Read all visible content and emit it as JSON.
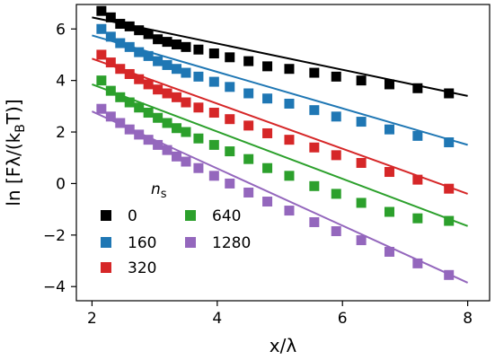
{
  "chart_data": {
    "type": "scatter",
    "xlabel": "x/λ",
    "ylabel": "ln [Fλ/(k_B T)]",
    "xlim": [
      1.75,
      8.35
    ],
    "ylim": [
      -4.55,
      6.95
    ],
    "xticks": [
      "2",
      "4",
      "6",
      "8"
    ],
    "xtick_values": [
      2,
      4,
      6,
      8
    ],
    "yticks": [
      "6",
      "4",
      "2",
      "0",
      "−2",
      "−4"
    ],
    "ytick_values": [
      6,
      4,
      2,
      0,
      -2,
      -4
    ],
    "grid": false,
    "legend_title": "n_s",
    "legend_placement": "lower-left",
    "series": [
      {
        "name": "0",
        "color": "#000000",
        "x": [
          2.15,
          2.3,
          2.45,
          2.6,
          2.75,
          2.9,
          3.05,
          3.2,
          3.35,
          3.5,
          3.7,
          3.95,
          4.2,
          4.5,
          4.8,
          5.15,
          5.55,
          5.9,
          6.3,
          6.75,
          7.2,
          7.7
        ],
        "y": [
          6.7,
          6.45,
          6.2,
          6.1,
          5.95,
          5.8,
          5.6,
          5.5,
          5.4,
          5.3,
          5.2,
          5.05,
          4.9,
          4.75,
          4.55,
          4.45,
          4.3,
          4.15,
          4.0,
          3.85,
          3.7,
          3.5
        ],
        "fit": {
          "x": [
            2.0,
            8.0
          ],
          "y": [
            6.45,
            3.4
          ]
        }
      },
      {
        "name": "160",
        "color": "#1f77b4",
        "x": [
          2.15,
          2.3,
          2.45,
          2.6,
          2.75,
          2.9,
          3.05,
          3.2,
          3.35,
          3.5,
          3.7,
          3.95,
          4.2,
          4.5,
          4.8,
          5.15,
          5.55,
          5.9,
          6.3,
          6.75,
          7.2,
          7.7
        ],
        "y": [
          6.0,
          5.7,
          5.45,
          5.3,
          5.1,
          4.95,
          4.75,
          4.6,
          4.45,
          4.3,
          4.15,
          3.95,
          3.75,
          3.5,
          3.3,
          3.1,
          2.85,
          2.6,
          2.4,
          2.1,
          1.85,
          1.6
        ],
        "fit": {
          "x": [
            2.0,
            8.0
          ],
          "y": [
            5.75,
            1.5
          ]
        }
      },
      {
        "name": "320",
        "color": "#d62728",
        "x": [
          2.15,
          2.3,
          2.45,
          2.6,
          2.75,
          2.9,
          3.05,
          3.2,
          3.35,
          3.5,
          3.7,
          3.95,
          4.2,
          4.5,
          4.8,
          5.15,
          5.55,
          5.9,
          6.3,
          6.75,
          7.2,
          7.7
        ],
        "y": [
          5.0,
          4.7,
          4.45,
          4.25,
          4.05,
          3.85,
          3.65,
          3.5,
          3.35,
          3.15,
          2.95,
          2.75,
          2.5,
          2.25,
          1.95,
          1.7,
          1.4,
          1.1,
          0.8,
          0.45,
          0.15,
          -0.2
        ],
        "fit": {
          "x": [
            2.0,
            8.0
          ],
          "y": [
            4.85,
            -0.4
          ]
        }
      },
      {
        "name": "640",
        "color": "#2ca02c",
        "x": [
          2.15,
          2.3,
          2.45,
          2.6,
          2.75,
          2.9,
          3.05,
          3.2,
          3.35,
          3.5,
          3.7,
          3.95,
          4.2,
          4.5,
          4.8,
          5.15,
          5.55,
          5.9,
          6.3,
          6.75,
          7.2,
          7.7
        ],
        "y": [
          4.0,
          3.6,
          3.35,
          3.15,
          2.95,
          2.75,
          2.55,
          2.35,
          2.15,
          2.0,
          1.75,
          1.5,
          1.25,
          0.95,
          0.6,
          0.3,
          -0.1,
          -0.4,
          -0.75,
          -1.1,
          -1.35,
          -1.45
        ],
        "fit": {
          "x": [
            2.0,
            8.0
          ],
          "y": [
            3.85,
            -1.65
          ]
        }
      },
      {
        "name": "1280",
        "color": "#9467bd",
        "x": [
          2.15,
          2.3,
          2.45,
          2.6,
          2.75,
          2.9,
          3.05,
          3.2,
          3.35,
          3.5,
          3.7,
          3.95,
          4.2,
          4.5,
          4.8,
          5.15,
          5.55,
          5.9,
          6.3,
          6.75,
          7.2,
          7.7
        ],
        "y": [
          2.9,
          2.6,
          2.35,
          2.1,
          1.9,
          1.7,
          1.5,
          1.3,
          1.05,
          0.85,
          0.6,
          0.3,
          0.0,
          -0.35,
          -0.7,
          -1.05,
          -1.5,
          -1.85,
          -2.2,
          -2.65,
          -3.1,
          -3.55
        ],
        "fit": {
          "x": [
            2.0,
            8.0
          ],
          "y": [
            2.8,
            -3.85
          ]
        }
      }
    ]
  }
}
